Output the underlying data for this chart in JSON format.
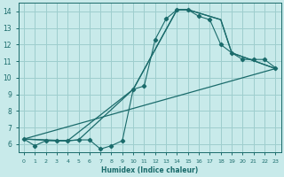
{
  "xlabel": "Humidex (Indice chaleur)",
  "bg_color": "#c8eaea",
  "line_color": "#1a6b6b",
  "grid_color": "#9ecece",
  "xlim": [
    -0.5,
    23.5
  ],
  "ylim": [
    5.5,
    14.5
  ],
  "xticks": [
    0,
    1,
    2,
    3,
    4,
    5,
    6,
    7,
    8,
    9,
    10,
    11,
    12,
    13,
    14,
    15,
    16,
    17,
    18,
    19,
    20,
    21,
    22,
    23
  ],
  "yticks": [
    6,
    7,
    8,
    9,
    10,
    11,
    12,
    13,
    14
  ],
  "line1_x": [
    0,
    1,
    2,
    3,
    4,
    5,
    6,
    7,
    8,
    9,
    10,
    11,
    12,
    13,
    14,
    15,
    16,
    17,
    18,
    19,
    20,
    21,
    22,
    23
  ],
  "line1_y": [
    6.3,
    5.9,
    6.2,
    6.2,
    6.2,
    6.25,
    6.25,
    5.7,
    5.9,
    6.2,
    9.3,
    9.5,
    12.3,
    13.55,
    14.1,
    14.1,
    13.7,
    13.5,
    12.0,
    11.5,
    11.1,
    11.1,
    11.1,
    10.6
  ],
  "line2_x": [
    0,
    23
  ],
  "line2_y": [
    6.3,
    10.55
  ],
  "line3_x": [
    0,
    4,
    10,
    14,
    15,
    18,
    19,
    23
  ],
  "line3_y": [
    6.3,
    6.2,
    9.3,
    14.1,
    14.1,
    13.5,
    11.5,
    10.55
  ],
  "line4_x": [
    0,
    3,
    4,
    5,
    10,
    14,
    15,
    18,
    19,
    23
  ],
  "line4_y": [
    6.3,
    6.2,
    6.2,
    6.25,
    9.3,
    14.1,
    14.1,
    13.5,
    11.5,
    10.55
  ]
}
